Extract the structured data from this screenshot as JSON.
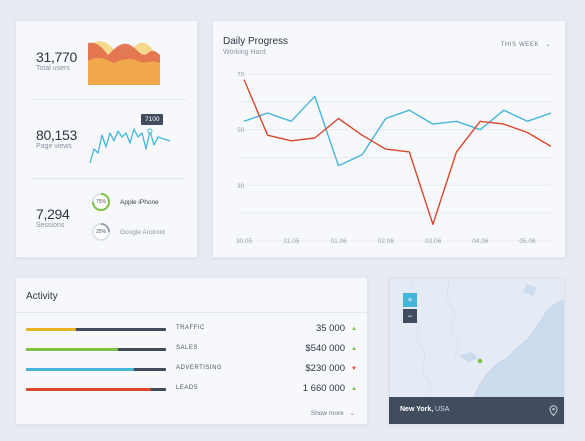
{
  "stats": {
    "users": {
      "value": "31,770",
      "label": "Total users"
    },
    "pageviews": {
      "value": "80,153",
      "label": "Page views",
      "tooltip": "7100"
    },
    "sessions": {
      "value": "7,294",
      "label": "Sessions"
    },
    "devices": [
      {
        "percent": "75%",
        "name": "Apple iPhone",
        "color": "#7cc243"
      },
      {
        "percent": "25%",
        "name": "Google Android",
        "color": "#9aa3b2"
      }
    ]
  },
  "progress": {
    "title": "Daily Progress",
    "subtitle": "Working Hard",
    "period": "THIS WEEK",
    "chart_data": {
      "type": "line",
      "x": [
        "30.05",
        "31.05",
        "01.06",
        "02.06",
        "03.06",
        "04.06",
        "05.06"
      ],
      "ylim": [
        10,
        70
      ],
      "yticks": [
        10,
        20,
        30,
        40,
        50,
        60,
        70
      ],
      "grid": true,
      "series": [
        {
          "color": "#45b6d8",
          "points": [
            [
              0,
              53
            ],
            [
              0.5,
              56
            ],
            [
              1,
              53
            ],
            [
              1.5,
              62
            ],
            [
              2,
              37
            ],
            [
              2.5,
              41
            ],
            [
              3,
              54
            ],
            [
              3.5,
              57
            ],
            [
              4,
              52
            ],
            [
              4.5,
              53
            ],
            [
              5,
              50
            ],
            [
              5.5,
              57
            ],
            [
              6,
              53
            ],
            [
              6.5,
              56
            ]
          ]
        },
        {
          "color": "#d9482b",
          "points": [
            [
              0,
              68
            ],
            [
              0.5,
              48
            ],
            [
              1,
              46
            ],
            [
              1.5,
              47
            ],
            [
              2,
              54
            ],
            [
              2.5,
              48
            ],
            [
              3,
              43
            ],
            [
              3.5,
              42
            ],
            [
              4,
              16
            ],
            [
              4.5,
              42
            ],
            [
              5,
              53
            ],
            [
              5.5,
              52
            ],
            [
              6,
              49
            ],
            [
              6.5,
              44
            ]
          ]
        }
      ]
    }
  },
  "activity": {
    "title": "Activity",
    "rows": [
      {
        "label": "TRAFFIC",
        "value": "35 000",
        "color": "#e8b424",
        "fill": 0.36,
        "trend": "up",
        "trend_color": "#7cc243",
        "arrow": "▲"
      },
      {
        "label": "SALES",
        "value": "$540 000",
        "color": "#7cc243",
        "fill": 0.66,
        "trend": "up",
        "trend_color": "#7cc243",
        "arrow": "▲"
      },
      {
        "label": "ADVERTISING",
        "value": "$230 000",
        "color": "#45b6d8",
        "fill": 0.77,
        "trend": "down",
        "trend_color": "#d9482b",
        "arrow": "▼"
      },
      {
        "label": "LEADS",
        "value": "1 660 000",
        "color": "#d9482b",
        "fill": 0.89,
        "trend": "up",
        "trend_color": "#7cc243",
        "arrow": "▲"
      }
    ],
    "more": "Show more"
  },
  "map": {
    "zoom_in": "+",
    "zoom_out": "−",
    "location_city": "New York,",
    "location_country": "USA"
  }
}
